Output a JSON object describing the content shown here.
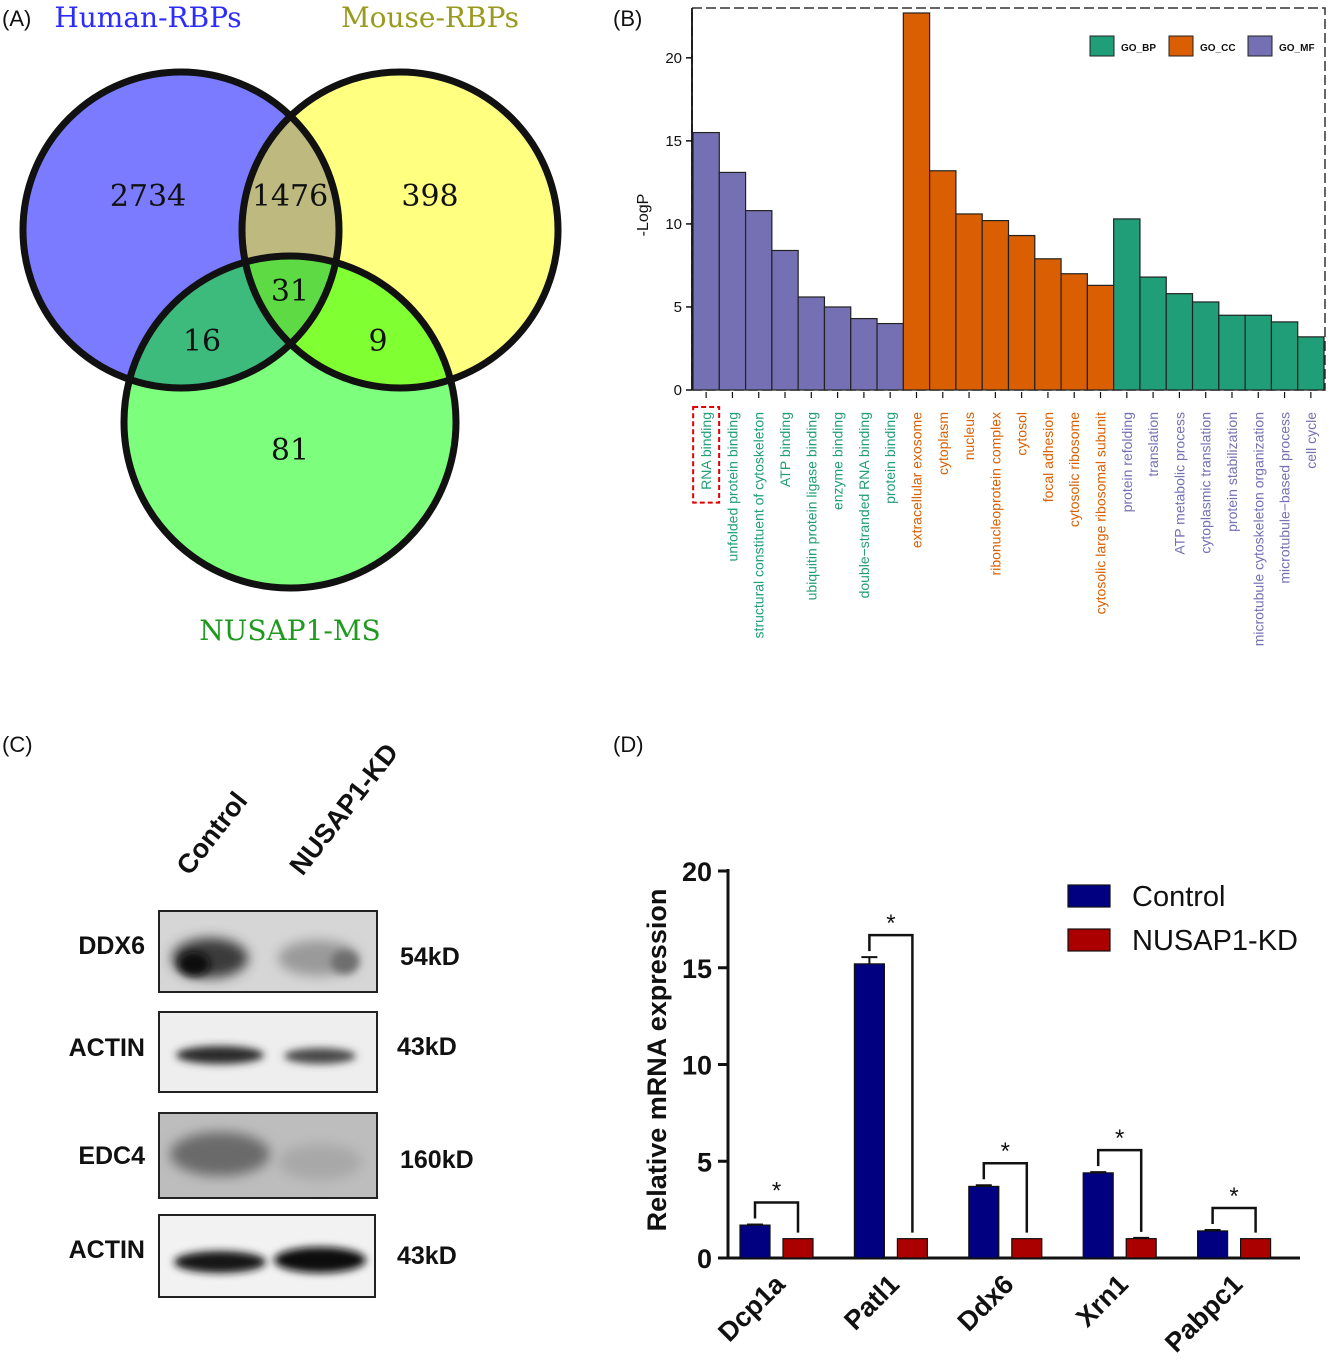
{
  "panels": {
    "A": {
      "label": "(A)",
      "venn": {
        "sets": [
          {
            "name": "Human-RBPs",
            "color": "#7b7bff",
            "label_color": "#2c2cff"
          },
          {
            "name": "Mouse-RBPs",
            "color": "#ffff80",
            "label_color": "#9a9a1e"
          },
          {
            "name": "NUSAP1-MS",
            "color": "#7dff7d",
            "label_color": "#1f9a1f"
          }
        ],
        "regions": {
          "human_only": "2734",
          "mouse_only": "398",
          "ms_only": "81",
          "human_mouse": "1476",
          "human_ms": "16",
          "mouse_ms": "9",
          "all_three": "31"
        }
      }
    },
    "B": {
      "label": "(B)"
    },
    "C": {
      "label": "(C)",
      "columns": [
        "Control",
        "NUSAP1-KD"
      ],
      "rows": [
        {
          "protein": "DDX6",
          "size": "54kD"
        },
        {
          "protein": "ACTIN",
          "size": "43kD"
        },
        {
          "protein": "EDC4",
          "size": "160kD"
        },
        {
          "protein": "ACTIN",
          "size": "43kD"
        }
      ]
    },
    "D": {
      "label": "(D)"
    }
  },
  "chart_data": [
    {
      "type": "bar",
      "panel": "B",
      "ylabel": "-LogP",
      "ylim": [
        0,
        23
      ],
      "yticks": [
        0,
        5,
        10,
        15,
        20
      ],
      "legend": [
        {
          "name": "GO_BP",
          "color": "#1f9e77"
        },
        {
          "name": "GO_CC",
          "color": "#d95f02"
        },
        {
          "name": "GO_MF",
          "color": "#7570b3"
        }
      ],
      "legend_position": "top-right",
      "categories": [
        {
          "label": "RNA binding",
          "value": 15.5,
          "group": "GO_MF",
          "label_color": "#1f9e77",
          "highlight": true
        },
        {
          "label": "unfolded protein binding",
          "value": 13.1,
          "group": "GO_MF",
          "label_color": "#1f9e77"
        },
        {
          "label": "structural constituent of cytoskeleton",
          "value": 10.8,
          "group": "GO_MF",
          "label_color": "#1f9e77"
        },
        {
          "label": "ATP binding",
          "value": 8.4,
          "group": "GO_MF",
          "label_color": "#1f9e77"
        },
        {
          "label": "ubiquitin protein ligase binding",
          "value": 5.6,
          "group": "GO_MF",
          "label_color": "#1f9e77"
        },
        {
          "label": "enzyme binding",
          "value": 5.0,
          "group": "GO_MF",
          "label_color": "#1f9e77"
        },
        {
          "label": "double−stranded RNA binding",
          "value": 4.3,
          "group": "GO_MF",
          "label_color": "#1f9e77"
        },
        {
          "label": "protein binding",
          "value": 4.0,
          "group": "GO_MF",
          "label_color": "#1f9e77"
        },
        {
          "label": "extracellular exosome",
          "value": 22.7,
          "group": "GO_CC",
          "label_color": "#d95f02"
        },
        {
          "label": "cytoplasm",
          "value": 13.2,
          "group": "GO_CC",
          "label_color": "#d95f02"
        },
        {
          "label": "nucleus",
          "value": 10.6,
          "group": "GO_CC",
          "label_color": "#d95f02"
        },
        {
          "label": "ribonucleoprotein complex",
          "value": 10.2,
          "group": "GO_CC",
          "label_color": "#d95f02"
        },
        {
          "label": "cytosol",
          "value": 9.3,
          "group": "GO_CC",
          "label_color": "#d95f02"
        },
        {
          "label": "focal adhesion",
          "value": 7.9,
          "group": "GO_CC",
          "label_color": "#d95f02"
        },
        {
          "label": "cytosolic ribosome",
          "value": 7.0,
          "group": "GO_CC",
          "label_color": "#d95f02"
        },
        {
          "label": "cytosolic large ribosomal subunit",
          "value": 6.3,
          "group": "GO_CC",
          "label_color": "#d95f02"
        },
        {
          "label": "protein refolding",
          "value": 10.3,
          "group": "GO_BP",
          "label_color": "#7570b3"
        },
        {
          "label": "translation",
          "value": 6.8,
          "group": "GO_BP",
          "label_color": "#7570b3"
        },
        {
          "label": "ATP metabolic process",
          "value": 5.8,
          "group": "GO_BP",
          "label_color": "#7570b3"
        },
        {
          "label": "cytoplasmic translation",
          "value": 5.3,
          "group": "GO_BP",
          "label_color": "#7570b3"
        },
        {
          "label": "protein stabilization",
          "value": 4.5,
          "group": "GO_BP",
          "label_color": "#7570b3"
        },
        {
          "label": "microtubule cytoskeleton organization",
          "value": 4.5,
          "group": "GO_BP",
          "label_color": "#7570b3"
        },
        {
          "label": "microtubule−based process",
          "value": 4.1,
          "group": "GO_BP",
          "label_color": "#7570b3"
        },
        {
          "label": "cell cycle",
          "value": 3.2,
          "group": "GO_BP",
          "label_color": "#7570b3"
        }
      ]
    },
    {
      "type": "bar",
      "panel": "D",
      "ylabel": "Relative mRNA expression",
      "ylim": [
        0,
        20
      ],
      "yticks": [
        0,
        5,
        10,
        15,
        20
      ],
      "categories": [
        "Dcp1a",
        "Patl1",
        "Ddx6",
        "Xrn1",
        "Pabpc1"
      ],
      "series": [
        {
          "name": "Control",
          "color": "#000080",
          "values": [
            1.7,
            15.2,
            3.7,
            4.4,
            1.4
          ],
          "errors": [
            0.03,
            0.35,
            0.06,
            0.04,
            0.05
          ]
        },
        {
          "name": "NUSAP1-KD",
          "color": "#aa0000",
          "values": [
            1.0,
            1.0,
            1.0,
            1.0,
            1.0
          ],
          "errors": [
            0.0,
            0.0,
            0.0,
            0.04,
            0.0
          ]
        }
      ],
      "significance": [
        "*",
        "*",
        "*",
        "*",
        "*"
      ],
      "legend_position": "top-right"
    }
  ]
}
